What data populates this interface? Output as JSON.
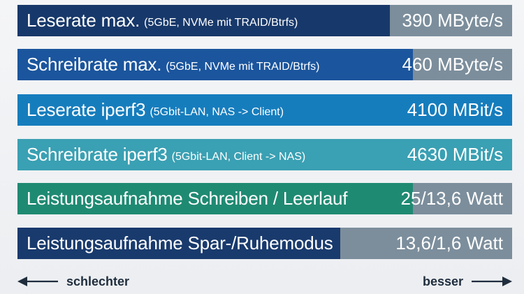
{
  "chart_data": {
    "type": "bar",
    "orientation": "horizontal",
    "title": "",
    "colors": {
      "track": "#7c8e9c",
      "text": "#ffffff"
    },
    "rows": [
      {
        "label": "Leserate max.",
        "note": "(5GbE, NVMe mit TRAID/Btrfs)",
        "value_text": "390 MByte/s",
        "fill": 0.753,
        "color": "#17386a"
      },
      {
        "label": "Schreibrate max.",
        "note": "(5GbE, NVMe mit TRAID/Btrfs)",
        "value_text": "460 MByte/s",
        "fill": 0.799,
        "color": "#1b559d"
      },
      {
        "label": "Leserate iperf3",
        "note": "(5Gbit-LAN, NAS -> Client)",
        "value_text": "4100 MBit/s",
        "fill": 1.0,
        "color": "#167dbd"
      },
      {
        "label": "Schreibrate iperf3",
        "note": "(5Gbit-LAN, Client -> NAS)",
        "value_text": "4630 MBit/s",
        "fill": 1.0,
        "color": "#3aa0b3"
      },
      {
        "label": "Leistungsaufnahme Schreiben / Leerlauf",
        "note": "",
        "value_text": "25/13,6 Watt",
        "fill": 0.799,
        "color": "#1f8a72"
      },
      {
        "label": "Leistungsaufnahme Spar-/Ruhemodus",
        "note": "",
        "value_text": "13,6/1,6 Watt",
        "fill": 0.652,
        "color": "#193a6d"
      }
    ],
    "footer": {
      "left": "schlechter",
      "right": "besser"
    }
  }
}
